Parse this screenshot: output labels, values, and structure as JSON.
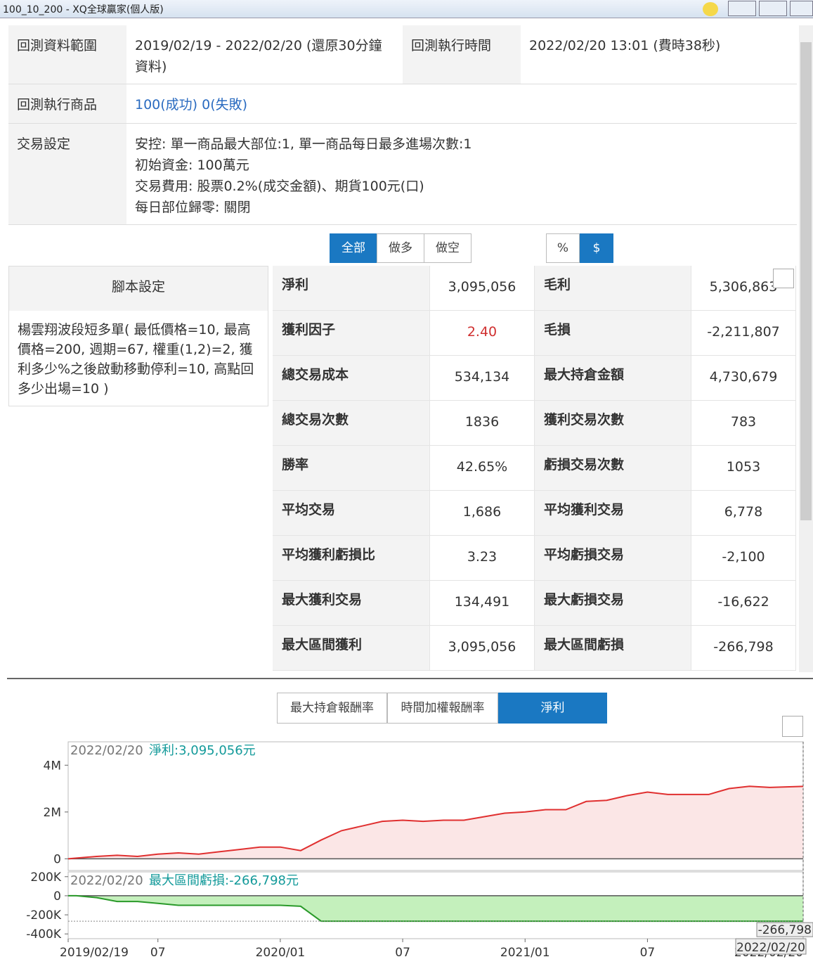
{
  "window": {
    "title": "100_10_200 - XQ全球贏家(個人版)"
  },
  "info": {
    "range_label": "回測資料範圍",
    "range_value": "2019/02/19 - 2022/02/20 (還原30分鐘資料)",
    "time_label": "回測執行時間",
    "time_value": "2022/02/20 13:01 (費時38秒)",
    "product_label": "回測執行商品",
    "product_value": "100(成功) 0(失敗)",
    "setting_label": "交易設定",
    "setting_lines": [
      "安控: 單一商品最大部位:1, 單一商品每日最多進場次數:1",
      "初始資金: 100萬元",
      "交易費用: 股票0.2%(成交金額)、期貨100元(口)",
      "每日部位歸零: 關閉"
    ]
  },
  "side_tabs": [
    "全部",
    "做多",
    "做空"
  ],
  "unit_tabs": [
    "%",
    "$"
  ],
  "script": {
    "header": "腳本設定",
    "text": "楊雲翔波段短多單( 最低價格=10, 最高價格=200, 週期=67, 權重(1,2)=2, 獲利多少%之後啟動移動停利=10, 高點回多少出場=10 )"
  },
  "stats": [
    [
      "淨利",
      "3,095,056",
      "毛利",
      "5,306,863"
    ],
    [
      "獲利因子",
      "2.40",
      "毛損",
      "-2,211,807"
    ],
    [
      "總交易成本",
      "534,134",
      "最大持倉金額",
      "4,730,679"
    ],
    [
      "總交易次數",
      "1836",
      "獲利交易次數",
      "783"
    ],
    [
      "勝率",
      "42.65%",
      "虧損交易次數",
      "1053"
    ],
    [
      "平均交易",
      "1,686",
      "平均獲利交易",
      "6,778"
    ],
    [
      "平均獲利虧損比",
      "3.23",
      "平均虧損交易",
      "-2,100"
    ],
    [
      "最大獲利交易",
      "134,491",
      "最大虧損交易",
      "-16,622"
    ],
    [
      "最大區間獲利",
      "3,095,056",
      "最大區間虧損",
      "-266,798"
    ]
  ],
  "chart_tabs": [
    "最大持倉報酬率",
    "時間加權報酬率",
    "淨利"
  ],
  "chart_data": [
    {
      "type": "area",
      "color": "#e03030",
      "fill": "#fbe6e6",
      "annotation_date": "2022/02/20",
      "annotation": "淨利:3,095,056元",
      "x": [
        "2019/02/19",
        "2019/03",
        "2019/04",
        "2019/05",
        "2019/06",
        "2019/07",
        "2019/08",
        "2019/09",
        "2019/10",
        "2019/11",
        "2019/12",
        "2020/01",
        "2020/02",
        "2020/03",
        "2020/04",
        "2020/05",
        "2020/06",
        "2020/07",
        "2020/08",
        "2020/09",
        "2020/10",
        "2020/11",
        "2020/12",
        "2021/01",
        "2021/02",
        "2021/03",
        "2021/04",
        "2021/05",
        "2021/06",
        "2021/07",
        "2021/08",
        "2021/09",
        "2021/10",
        "2021/11",
        "2021/12",
        "2022/01",
        "2022/02/20"
      ],
      "values": [
        0,
        30000,
        100000,
        150000,
        100000,
        200000,
        250000,
        200000,
        300000,
        400000,
        500000,
        500000,
        350000,
        800000,
        1200000,
        1400000,
        1600000,
        1650000,
        1600000,
        1650000,
        1650000,
        1800000,
        1950000,
        2000000,
        2100000,
        2100000,
        2450000,
        2500000,
        2700000,
        2850000,
        2750000,
        2750000,
        2750000,
        3000000,
        3100000,
        3050000,
        3095056
      ],
      "xlim": [
        "2019/02/19",
        "2022/02/20"
      ],
      "ylim": [
        -500000,
        5000000
      ],
      "yticks": [
        0,
        {
          "value": 2000000,
          "label": "2M"
        },
        {
          "value": 4000000,
          "label": "4M"
        }
      ]
    },
    {
      "type": "area",
      "color": "#2a9a2a",
      "fill": "#c4f0bc",
      "annotation_date": "2022/02/20",
      "annotation": "最大區間虧損:-266,798元",
      "end_label": "-266,798",
      "end_date": "2022/02/20",
      "x": [
        "2019/02/19",
        "2019/03",
        "2019/04",
        "2019/05",
        "2019/06",
        "2019/07",
        "2019/08",
        "2019/09",
        "2019/10",
        "2019/11",
        "2019/12",
        "2020/01",
        "2020/02",
        "2020/03",
        "2022/02/20"
      ],
      "values": [
        0,
        0,
        -20000,
        -60000,
        -60000,
        -80000,
        -100000,
        -100000,
        -100000,
        -100000,
        -100000,
        -100000,
        -110000,
        -266798,
        -266798
      ],
      "xlim": [
        "2019/02/19",
        "2022/02/20"
      ],
      "ylim": [
        -450000,
        250000
      ],
      "yticks": [
        {
          "value": 200000,
          "label": "200K"
        },
        0,
        {
          "value": -200000,
          "label": "-200K"
        },
        {
          "value": -400000,
          "label": "-400K"
        }
      ],
      "xticks": [
        "2019/02/19",
        {
          "value": "2019/07",
          "label": "07"
        },
        "2020/01",
        {
          "value": "2020/07",
          "label": "07"
        },
        "2021/01",
        {
          "value": "2021/07",
          "label": "07"
        },
        "2022/02/20"
      ]
    }
  ]
}
